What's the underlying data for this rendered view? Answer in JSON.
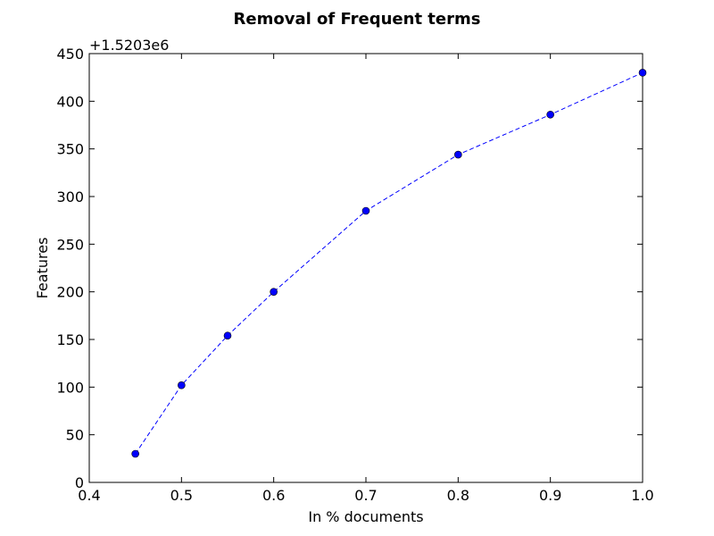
{
  "chart_data": {
    "type": "line",
    "title": "Removal of Frequent terms",
    "xlabel": "In % documents",
    "ylabel": "Features",
    "y_offset_label": "+1.5203e6",
    "xlim": [
      0.4,
      1.0
    ],
    "ylim": [
      0,
      450
    ],
    "x_ticks": [
      0.4,
      0.5,
      0.6,
      0.7,
      0.8,
      0.9,
      1.0
    ],
    "x_tick_labels": [
      "0.4",
      "0.5",
      "0.6",
      "0.7",
      "0.8",
      "0.9",
      "1.0"
    ],
    "y_ticks": [
      0,
      50,
      100,
      150,
      200,
      250,
      300,
      350,
      400,
      450
    ],
    "y_tick_labels": [
      "0",
      "50",
      "100",
      "150",
      "200",
      "250",
      "300",
      "350",
      "400",
      "450"
    ],
    "grid": false,
    "series": [
      {
        "color": "#0000ff",
        "line_style": "dashed",
        "marker": "circle",
        "x": [
          0.45,
          0.5,
          0.55,
          0.6,
          0.7,
          0.8,
          0.9,
          1.0
        ],
        "y": [
          30,
          102,
          154,
          200,
          285,
          344,
          386,
          430
        ]
      }
    ]
  }
}
